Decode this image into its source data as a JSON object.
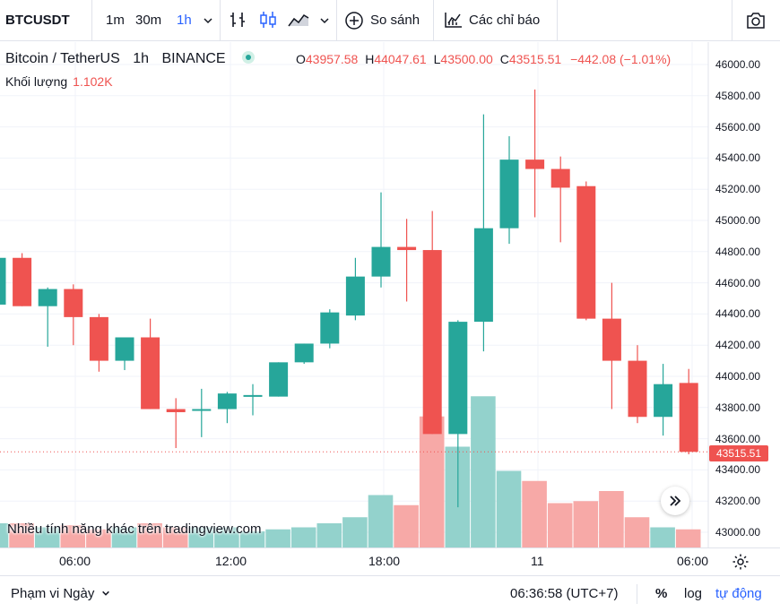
{
  "toolbar": {
    "symbol": "BTCUSDT",
    "intervals": [
      "1m",
      "30m",
      "1h"
    ],
    "active_interval": "1h",
    "compare_label": "So sánh",
    "indicators_label": "Các chỉ báo"
  },
  "legend": {
    "title": "Bitcoin / TetherUS",
    "interval": "1h",
    "exchange": "BINANCE",
    "open_prefix": "O",
    "open": "43957.58",
    "high_prefix": "H",
    "high": "44047.61",
    "low_prefix": "L",
    "low": "43500.00",
    "close_prefix": "C",
    "close": "43515.51",
    "change": "−442.08 (−1.01%)",
    "volume_label": "Khối lượng",
    "volume_value": "1.102K"
  },
  "promo_text": "Nhiều tính năng khác trên tradingview.com",
  "price_axis": {
    "ticks": [
      "46000.00",
      "45800.00",
      "45600.00",
      "45400.00",
      "45200.00",
      "45000.00",
      "44800.00",
      "44600.00",
      "44400.00",
      "44200.00",
      "44000.00",
      "43800.00",
      "43600.00",
      "43400.00",
      "43200.00",
      "43000.00"
    ],
    "last_price": "43515.51"
  },
  "time_axis": {
    "ticks": [
      "06:00",
      "12:00",
      "18:00",
      "11",
      "06:00"
    ]
  },
  "bottom_bar": {
    "range_label": "Phạm vi Ngày",
    "clock": "06:36:58 (UTC+7)",
    "percent": "%",
    "log": "log",
    "auto": "tự động"
  },
  "colors": {
    "up": "#26a69a",
    "down": "#ef5350",
    "up_volume": "#93d2cc",
    "down_volume": "#f7a9a7",
    "accent": "#2962ff"
  },
  "chart_data": {
    "type": "candlestick",
    "symbol": "BTCUSDT",
    "interval": "1h",
    "ylim": [
      43000,
      46000
    ],
    "x_ticks": [
      "06:00",
      "12:00",
      "18:00",
      "11",
      "06:00"
    ],
    "candles": [
      {
        "o": 44460,
        "h": 44790,
        "l": 44460,
        "c": 44760
      },
      {
        "o": 44760,
        "h": 44790,
        "l": 44450,
        "c": 44450
      },
      {
        "o": 44450,
        "h": 44570,
        "l": 44190,
        "c": 44560
      },
      {
        "o": 44560,
        "h": 44590,
        "l": 44200,
        "c": 44380
      },
      {
        "o": 44380,
        "h": 44400,
        "l": 44030,
        "c": 44100
      },
      {
        "o": 44100,
        "h": 44250,
        "l": 44040,
        "c": 44250
      },
      {
        "o": 44250,
        "h": 44370,
        "l": 43790,
        "c": 43790
      },
      {
        "o": 43790,
        "h": 43860,
        "l": 43540,
        "c": 43770
      },
      {
        "o": 43780,
        "h": 43920,
        "l": 43610,
        "c": 43790
      },
      {
        "o": 43790,
        "h": 43900,
        "l": 43700,
        "c": 43890
      },
      {
        "o": 43880,
        "h": 43950,
        "l": 43750,
        "c": 43880
      },
      {
        "o": 43870,
        "h": 44090,
        "l": 43870,
        "c": 44090
      },
      {
        "o": 44090,
        "h": 44210,
        "l": 44080,
        "c": 44210
      },
      {
        "o": 44210,
        "h": 44430,
        "l": 44180,
        "c": 44410
      },
      {
        "o": 44390,
        "h": 44760,
        "l": 44360,
        "c": 44640
      },
      {
        "o": 44640,
        "h": 45180,
        "l": 44570,
        "c": 44830
      },
      {
        "o": 44830,
        "h": 45010,
        "l": 44480,
        "c": 44810
      },
      {
        "o": 44810,
        "h": 45060,
        "l": 43630,
        "c": 43630
      },
      {
        "o": 43630,
        "h": 44360,
        "l": 43160,
        "c": 44350
      },
      {
        "o": 44350,
        "h": 45680,
        "l": 44160,
        "c": 44950
      },
      {
        "o": 44950,
        "h": 45540,
        "l": 44850,
        "c": 45390
      },
      {
        "o": 45390,
        "h": 45840,
        "l": 45020,
        "c": 45330
      },
      {
        "o": 45330,
        "h": 45410,
        "l": 44860,
        "c": 45210
      },
      {
        "o": 45220,
        "h": 45250,
        "l": 44360,
        "c": 44370
      },
      {
        "o": 44370,
        "h": 44600,
        "l": 43790,
        "c": 44100
      },
      {
        "o": 44100,
        "h": 44200,
        "l": 43700,
        "c": 43740
      },
      {
        "o": 43740,
        "h": 44080,
        "l": 43620,
        "c": 43950
      },
      {
        "o": 43957.58,
        "h": 44047.61,
        "l": 43500.0,
        "c": 43515.51
      }
    ],
    "volume_relative": [
      0.12,
      0.12,
      0.1,
      0.11,
      0.09,
      0.1,
      0.12,
      0.1,
      0.1,
      0.1,
      0.08,
      0.09,
      0.1,
      0.12,
      0.15,
      0.26,
      0.21,
      0.65,
      0.5,
      0.75,
      0.38,
      0.33,
      0.22,
      0.23,
      0.28,
      0.15,
      0.1,
      0.09
    ]
  }
}
